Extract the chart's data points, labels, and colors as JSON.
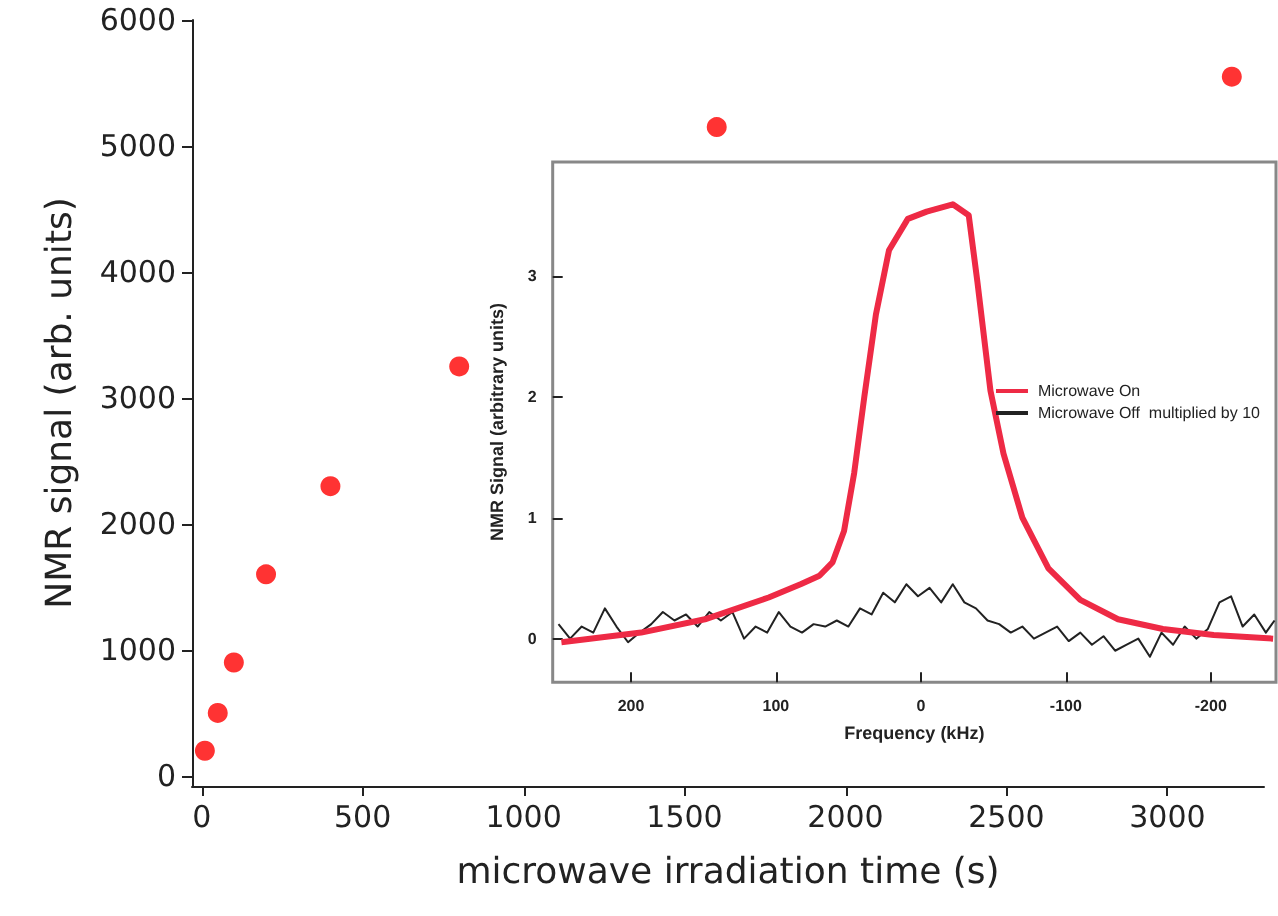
{
  "chart_data": [
    {
      "type": "scatter",
      "xlabel": "microwave irradiation time (s)",
      "ylabel": "NMR signal (arb. units)",
      "x": [
        10,
        50,
        100,
        200,
        400,
        800,
        1600,
        3200
      ],
      "values": [
        200,
        500,
        900,
        1600,
        2300,
        3250,
        5150,
        5550
      ],
      "color": "#ff0000",
      "marker": "circle",
      "xlim": [
        -30,
        3300
      ],
      "ylim": [
        -80,
        6000
      ],
      "xticks": [
        0,
        500,
        1000,
        1500,
        2000,
        2500,
        3000
      ],
      "yticks": [
        0,
        1000,
        2000,
        3000,
        4000,
        5000,
        6000
      ],
      "grid": false
    },
    {
      "type": "line",
      "xlabel": "Frequency (kHz)",
      "ylabel": "NMR Signal (arbitrary units)",
      "xlim": [
        254,
        -245
      ],
      "ylim": [
        -0.36,
        3.94
      ],
      "xticks": [
        200,
        100,
        0,
        -100,
        -200
      ],
      "yticks": [
        0,
        1,
        2,
        3
      ],
      "grid": false,
      "legend": "right",
      "series": [
        {
          "name": "Microwave On",
          "color": "#ee2a45",
          "x": [
            248,
            193,
            149,
            105,
            83,
            70,
            61,
            53,
            46,
            39,
            31,
            22,
            9,
            -4,
            -22,
            -33,
            -39,
            -48,
            -57,
            -70,
            -88,
            -110,
            -136,
            -167,
            -202,
            -243
          ],
          "values": [
            -0.03,
            0.05,
            0.16,
            0.34,
            0.45,
            0.52,
            0.63,
            0.89,
            1.37,
            2.0,
            2.68,
            3.21,
            3.47,
            3.53,
            3.59,
            3.5,
            2.95,
            2.05,
            1.53,
            1.0,
            0.58,
            0.32,
            0.16,
            0.08,
            0.03,
            0.0
          ]
        },
        {
          "name": "Microwave Off  multiplied by 10",
          "color": "#222222",
          "x": [
            250,
            242,
            234,
            226,
            218,
            210,
            202,
            194,
            186,
            178,
            170,
            162,
            154,
            146,
            138,
            130,
            122,
            114,
            106,
            98,
            90,
            82,
            74,
            66,
            58,
            50,
            42,
            34,
            26,
            18,
            10,
            2,
            -6,
            -14,
            -22,
            -30,
            -38,
            -46,
            -54,
            -62,
            -70,
            -78,
            -86,
            -94,
            -102,
            -110,
            -118,
            -126,
            -134,
            -142,
            -150,
            -158,
            -166,
            -174,
            -182,
            -190,
            -198,
            -206,
            -214,
            -222,
            -230,
            -238,
            -244
          ],
          "values": [
            0.12,
            0.0,
            0.1,
            0.05,
            0.25,
            0.1,
            -0.03,
            0.05,
            0.12,
            0.22,
            0.15,
            0.2,
            0.1,
            0.22,
            0.15,
            0.22,
            0.0,
            0.1,
            0.05,
            0.22,
            0.1,
            0.05,
            0.12,
            0.1,
            0.15,
            0.1,
            0.25,
            0.2,
            0.38,
            0.3,
            0.45,
            0.35,
            0.42,
            0.3,
            0.45,
            0.3,
            0.25,
            0.15,
            0.12,
            0.05,
            0.1,
            0.0,
            0.05,
            0.1,
            -0.02,
            0.05,
            -0.05,
            0.02,
            -0.1,
            -0.05,
            0.0,
            -0.15,
            0.05,
            -0.05,
            0.1,
            0.0,
            0.08,
            0.3,
            0.35,
            0.1,
            0.2,
            0.05,
            0.15
          ]
        }
      ]
    }
  ]
}
